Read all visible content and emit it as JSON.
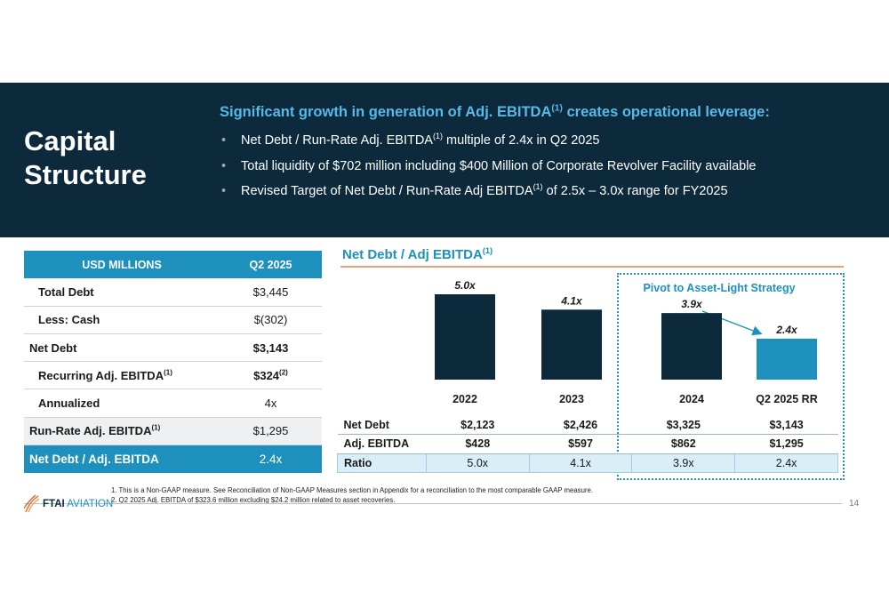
{
  "banner": {
    "title_line1": "Capital",
    "title_line2": "Structure",
    "headline_pre": "Significant growth in generation of Adj. EBITDA",
    "headline_sup": "(1)",
    "headline_post": " creates operational leverage:",
    "bullets": [
      {
        "pre": "Net Debt / Run-Rate Adj. EBITDA",
        "sup": "(1)",
        "post": " multiple of 2.4x in Q2 2025"
      },
      {
        "pre": "Total liquidity of $702 million including $400 Million of Corporate Revolver Facility available",
        "sup": "",
        "post": ""
      },
      {
        "pre": "Revised Target of Net Debt / Run-Rate Adj EBITDA",
        "sup": "(1)",
        "post": " of 2.5x – 3.0x range for FY2025"
      }
    ]
  },
  "left_table": {
    "header": {
      "label": "USD MILLIONS",
      "value": "Q2 2025"
    },
    "rows": [
      {
        "label": "Total Debt",
        "sup": "",
        "value": "$3,445",
        "vsup": ""
      },
      {
        "label": "Less: Cash",
        "sup": "",
        "value": "$(302)",
        "vsup": ""
      },
      {
        "label": "Net Debt",
        "sup": "",
        "value": "$3,143",
        "vsup": ""
      },
      {
        "label": "Recurring Adj. EBITDA",
        "sup": "(1)",
        "value": "$324",
        "vsup": "(2)"
      },
      {
        "label": "Annualized",
        "sup": "",
        "value": "4x",
        "vsup": ""
      },
      {
        "label": "Run-Rate Adj. EBITDA",
        "sup": "(1)",
        "value": "$1,295",
        "vsup": ""
      }
    ],
    "footer": {
      "label": "Net Debt / Adj. EBITDA",
      "value": "2.4x"
    }
  },
  "chart_title": {
    "text": "Net Debt / Adj EBITDA",
    "sup": "(1)"
  },
  "pivot_label": "Pivot to Asset-Light Strategy",
  "chart_data": {
    "type": "bar",
    "title": "Net Debt / Adj EBITDA",
    "categories": [
      "2022",
      "2023",
      "2024",
      "Q2 2025 RR"
    ],
    "values": [
      5.0,
      4.1,
      3.9,
      2.4
    ],
    "value_labels": [
      "5.0x",
      "4.1x",
      "3.9x",
      "2.4x"
    ],
    "colors": [
      "#0c2a3c",
      "#0c2a3c",
      "#0c2a3c",
      "#1e90bd"
    ],
    "ylim": [
      0,
      5.0
    ],
    "grid": false
  },
  "data_table": {
    "rows": [
      {
        "label": "Net Debt",
        "values": [
          "$2,123",
          "$2,426",
          "$3,325",
          "$3,143"
        ]
      },
      {
        "label": "Adj. EBITDA",
        "values": [
          "$428",
          "$597",
          "$862",
          "$1,295"
        ]
      },
      {
        "label": "Ratio",
        "values": [
          "5.0x",
          "4.1x",
          "3.9x",
          "2.4x"
        ]
      }
    ]
  },
  "footnotes": [
    "1.  This is a Non-GAAP measure. See Reconciliation of Non-GAAP Measures section in Appendix for a reconciliation to the most comparable GAAP measure.",
    "2.  Q2 2025 Adj. EBITDA of $323.6 million excluding $24.2 million related to asset recoveries."
  ],
  "logo": {
    "bold": "FTAI",
    "light": "AVIATION"
  },
  "page_number": "14",
  "colors": {
    "navy": "#0c2a3c",
    "accent_blue": "#1e90bd",
    "headline_blue": "#58b9e6",
    "rule_orange": "#e3a47c"
  }
}
